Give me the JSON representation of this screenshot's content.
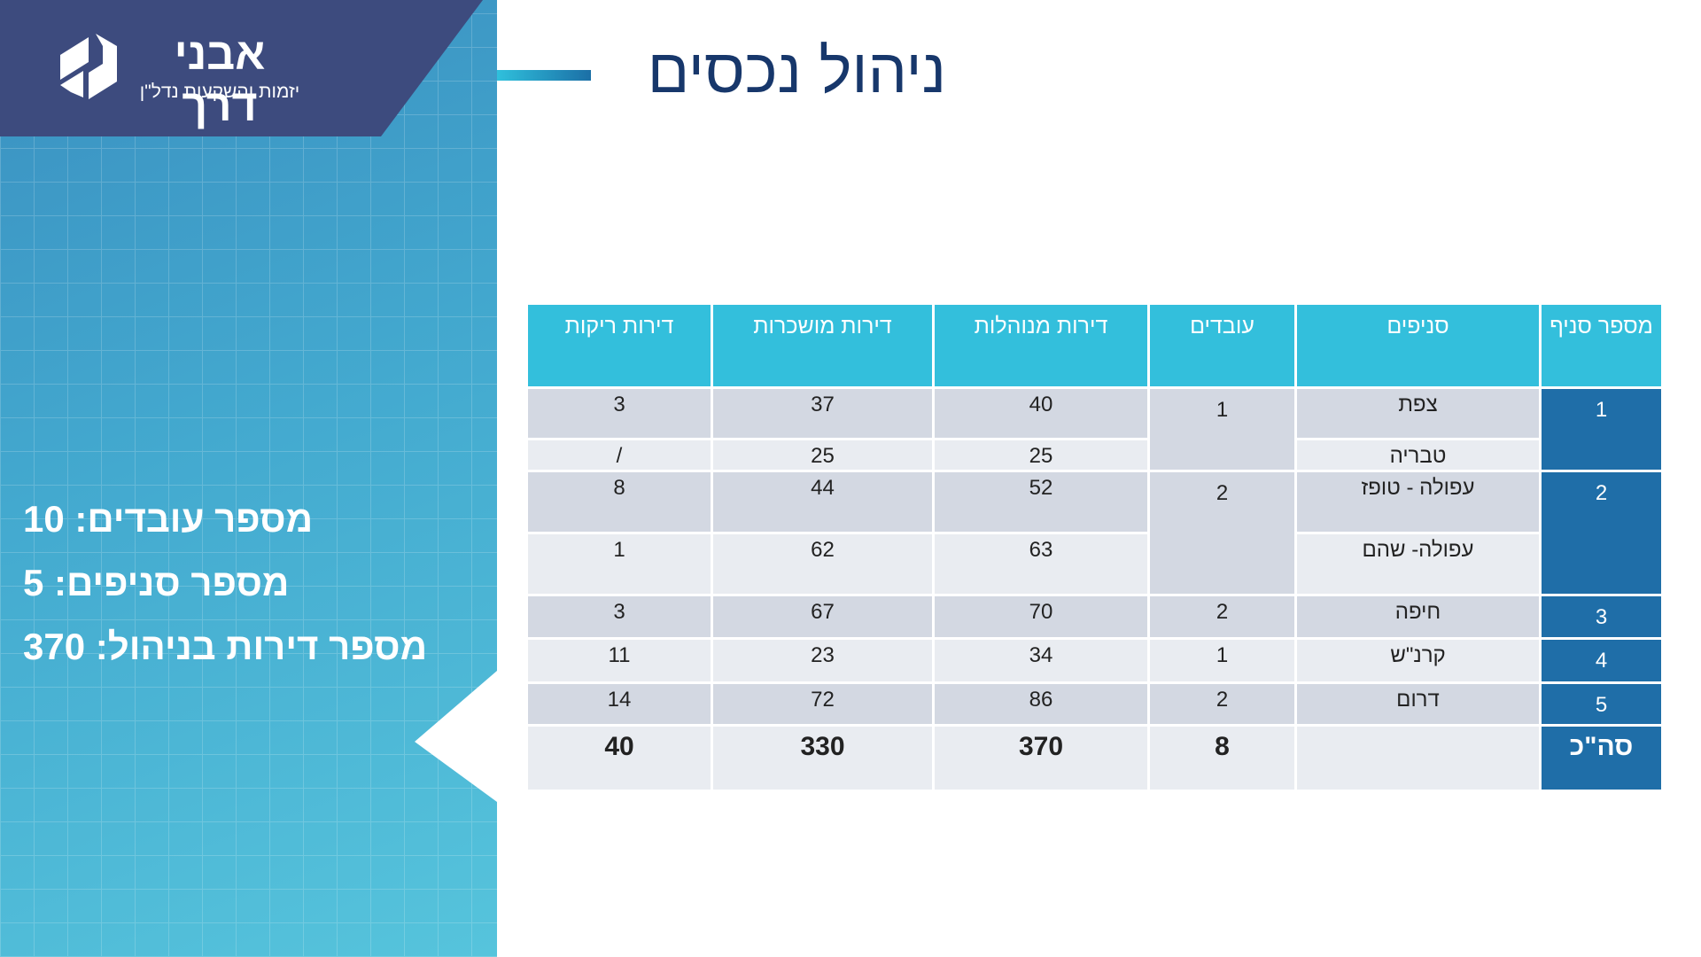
{
  "brand": {
    "name": "אבני דרך",
    "tagline": "יזמות והשקעות נדל\"ן"
  },
  "title": "ניהול נכסים",
  "stats": [
    "מספר עובדים: 10",
    "מספר סניפים: 5",
    "מספר דירות בניהול: 370"
  ],
  "table": {
    "headers": [
      "מספר סניף",
      "סניפים",
      "עובדים",
      "דירות מנוהלות",
      "דירות מושכרות",
      "דירות ריקות"
    ],
    "rows": [
      {
        "branch_no": "1",
        "branch": "צפת",
        "workers": "1",
        "managed": "40",
        "rented": "37",
        "vacant": "3"
      },
      {
        "branch": "טבריה",
        "managed": "25",
        "rented": "25",
        "vacant": "/"
      },
      {
        "branch_no": "2",
        "branch": "עפולה - טופז",
        "workers": "2",
        "managed": "52",
        "rented": "44",
        "vacant": "8"
      },
      {
        "branch": "עפולה- שהם",
        "managed": "63",
        "rented": "62",
        "vacant": "1"
      },
      {
        "branch_no": "3",
        "branch": "חיפה",
        "workers": "2",
        "managed": "70",
        "rented": "67",
        "vacant": "3"
      },
      {
        "branch_no": "4",
        "branch": "קרנ\"ש",
        "workers": "1",
        "managed": "34",
        "rented": "23",
        "vacant": "11"
      },
      {
        "branch_no": "5",
        "branch": "דרום",
        "workers": "2",
        "managed": "86",
        "rented": "72",
        "vacant": "14"
      }
    ],
    "total": {
      "label": "סה\"כ",
      "workers": "8",
      "managed": "370",
      "rented": "330",
      "vacant": "40"
    }
  }
}
